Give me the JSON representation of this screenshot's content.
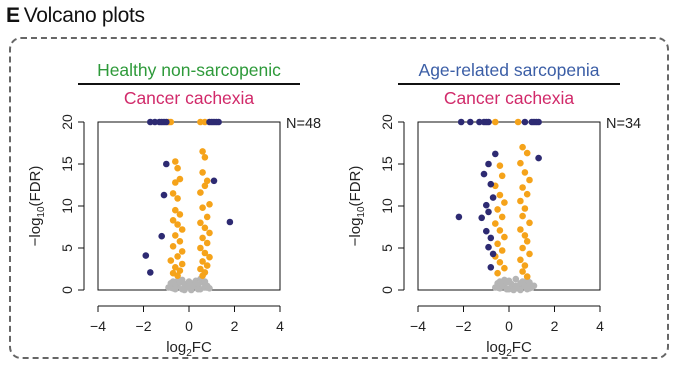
{
  "panel": {
    "letter": "E",
    "title": "Volcano plots"
  },
  "colors": {
    "frame": "#666666",
    "healthy": "#2e9a3a",
    "sarcopenia": "#3b5ea6",
    "cachexia": "#d12a6a",
    "significant": "#f5a31a",
    "not_significant": "#b5b5b5",
    "large_effect": "#2d2a72"
  },
  "chart_data": [
    {
      "type": "scatter",
      "comparison_top": "Healthy non-sarcopenic",
      "comparison_bottom": "Cancer cachexia",
      "top_color": "#2e9a3a",
      "n_label": "N=48",
      "xlabel_main": "log",
      "xlabel_sub": "2",
      "xlabel_tail": "FC",
      "ylabel_main": "−log",
      "ylabel_sub": "10",
      "ylabel_tail": "(FDR)",
      "xlim": [
        -4,
        4
      ],
      "ylim": [
        0,
        20
      ],
      "x_ticks": [
        -4,
        -2,
        0,
        2,
        4
      ],
      "y_ticks": [
        0,
        5,
        10,
        15,
        20
      ],
      "grid": false,
      "series": [
        {
          "category": "not_significant",
          "color": "#b5b5b5",
          "points": [
            [
              -0.9,
              0.3
            ],
            [
              -0.7,
              0.2
            ],
            [
              -0.5,
              0.4
            ],
            [
              -0.3,
              0.1
            ],
            [
              -0.1,
              0.3
            ],
            [
              0.1,
              0.2
            ],
            [
              0.3,
              0.4
            ],
            [
              0.5,
              0.1
            ],
            [
              0.7,
              0.3
            ],
            [
              -0.8,
              0.8
            ],
            [
              -0.6,
              0.6
            ],
            [
              -0.4,
              0.9
            ],
            [
              -0.2,
              0.7
            ],
            [
              0.0,
              0.5
            ],
            [
              0.2,
              0.8
            ],
            [
              0.4,
              0.6
            ],
            [
              0.6,
              0.9
            ],
            [
              0.8,
              0.5
            ],
            [
              -0.5,
              1.1
            ],
            [
              -0.3,
              1.2
            ],
            [
              0.0,
              1.0
            ],
            [
              0.3,
              1.1
            ],
            [
              0.5,
              1.3
            ],
            [
              -0.7,
              1.0
            ],
            [
              0.7,
              1.0
            ],
            [
              -0.2,
              0.0
            ],
            [
              0.1,
              0.0
            ],
            [
              0.4,
              0.1
            ],
            [
              -0.6,
              0.1
            ],
            [
              0.9,
              0.2
            ]
          ]
        },
        {
          "category": "significant",
          "color": "#f5a31a",
          "points": [
            [
              -0.6,
              15.3
            ],
            [
              -0.5,
              14.5
            ],
            [
              -0.4,
              13.2
            ],
            [
              -0.6,
              12.8
            ],
            [
              -0.7,
              11.5
            ],
            [
              -0.5,
              10.9
            ],
            [
              -0.6,
              9.5
            ],
            [
              -0.4,
              9.0
            ],
            [
              -0.7,
              8.3
            ],
            [
              -0.5,
              7.8
            ],
            [
              -0.3,
              7.2
            ],
            [
              -0.6,
              6.5
            ],
            [
              -0.4,
              5.8
            ],
            [
              -0.7,
              5.2
            ],
            [
              -0.3,
              4.6
            ],
            [
              -0.5,
              4.0
            ],
            [
              -0.8,
              3.5
            ],
            [
              -0.3,
              3.1
            ],
            [
              -0.6,
              2.7
            ],
            [
              -0.4,
              2.3
            ],
            [
              -0.7,
              2.0
            ],
            [
              -0.5,
              1.7
            ],
            [
              0.6,
              16.5
            ],
            [
              0.7,
              15.8
            ],
            [
              0.6,
              14.0
            ],
            [
              0.8,
              13.0
            ],
            [
              0.7,
              12.4
            ],
            [
              0.5,
              11.6
            ],
            [
              0.9,
              10.2
            ],
            [
              0.6,
              9.8
            ],
            [
              0.8,
              8.7
            ],
            [
              0.5,
              8.0
            ],
            [
              0.7,
              7.4
            ],
            [
              0.9,
              6.8
            ],
            [
              0.6,
              6.2
            ],
            [
              0.8,
              5.6
            ],
            [
              0.5,
              5.0
            ],
            [
              0.7,
              4.4
            ],
            [
              0.9,
              3.9
            ],
            [
              0.6,
              3.4
            ],
            [
              0.8,
              2.9
            ],
            [
              0.5,
              2.5
            ],
            [
              0.7,
              2.1
            ],
            [
              0.6,
              1.7
            ],
            [
              -0.9,
              20
            ],
            [
              -0.8,
              20
            ],
            [
              0.5,
              20
            ],
            [
              0.7,
              20
            ]
          ]
        },
        {
          "category": "large_effect",
          "color": "#2d2a72",
          "points": [
            [
              -1.7,
              20
            ],
            [
              -1.5,
              20
            ],
            [
              -1.3,
              20
            ],
            [
              -1.2,
              20
            ],
            [
              -1.1,
              20
            ],
            [
              -1.0,
              20
            ],
            [
              0.9,
              20
            ],
            [
              1.0,
              20
            ],
            [
              1.1,
              20
            ],
            [
              1.2,
              20
            ],
            [
              1.3,
              20
            ],
            [
              -1.0,
              15.0
            ],
            [
              -1.1,
              11.3
            ],
            [
              -1.2,
              6.4
            ],
            [
              -1.9,
              4.1
            ],
            [
              -1.7,
              2.1
            ],
            [
              1.1,
              13.0
            ],
            [
              1.8,
              8.1
            ]
          ]
        }
      ]
    },
    {
      "type": "scatter",
      "comparison_top": "Age-related sarcopenia",
      "comparison_bottom": "Cancer cachexia",
      "top_color": "#3b5ea6",
      "n_label": "N=34",
      "xlabel_main": "log",
      "xlabel_sub": "2",
      "xlabel_tail": "FC",
      "ylabel_main": "−log",
      "ylabel_sub": "10",
      "ylabel_tail": "(FDR)",
      "xlim": [
        -4,
        4
      ],
      "ylim": [
        0,
        20
      ],
      "x_ticks": [
        -4,
        -2,
        0,
        2,
        4
      ],
      "y_ticks": [
        0,
        5,
        10,
        15,
        20
      ],
      "grid": false,
      "series": [
        {
          "category": "not_significant",
          "color": "#b5b5b5",
          "points": [
            [
              -0.6,
              0.3
            ],
            [
              -0.4,
              0.2
            ],
            [
              -0.2,
              0.4
            ],
            [
              0.0,
              0.1
            ],
            [
              0.2,
              0.3
            ],
            [
              0.4,
              0.2
            ],
            [
              0.6,
              0.4
            ],
            [
              0.8,
              0.1
            ],
            [
              1.0,
              0.3
            ],
            [
              -0.5,
              0.8
            ],
            [
              -0.3,
              0.6
            ],
            [
              -0.1,
              0.9
            ],
            [
              0.1,
              0.7
            ],
            [
              0.3,
              0.5
            ],
            [
              0.5,
              0.8
            ],
            [
              0.7,
              0.6
            ],
            [
              0.9,
              0.9
            ],
            [
              1.1,
              0.5
            ],
            [
              -0.2,
              1.2
            ],
            [
              0.0,
              1.1
            ],
            [
              0.3,
              1.3
            ],
            [
              0.6,
              1.0
            ],
            [
              0.8,
              1.2
            ],
            [
              -0.4,
              1.0
            ],
            [
              0.2,
              0.0
            ],
            [
              0.5,
              0.0
            ],
            [
              -0.1,
              0.1
            ],
            [
              0.9,
              0.2
            ]
          ]
        },
        {
          "category": "significant",
          "color": "#f5a31a",
          "points": [
            [
              -0.4,
              14.8
            ],
            [
              -0.3,
              13.6
            ],
            [
              -0.6,
              12.4
            ],
            [
              -0.4,
              11.3
            ],
            [
              -0.2,
              10.4
            ],
            [
              -0.5,
              9.6
            ],
            [
              -0.3,
              8.7
            ],
            [
              -0.6,
              7.9
            ],
            [
              -0.4,
              7.1
            ],
            [
              -0.2,
              6.3
            ],
            [
              -0.5,
              5.5
            ],
            [
              -0.3,
              4.7
            ],
            [
              -0.6,
              4.0
            ],
            [
              -0.4,
              3.3
            ],
            [
              -0.2,
              2.6
            ],
            [
              -0.5,
              2.0
            ],
            [
              0.6,
              17.0
            ],
            [
              0.8,
              16.3
            ],
            [
              0.5,
              15.1
            ],
            [
              0.7,
              14.0
            ],
            [
              0.9,
              13.1
            ],
            [
              0.6,
              12.2
            ],
            [
              0.8,
              11.4
            ],
            [
              0.5,
              10.6
            ],
            [
              0.7,
              9.7
            ],
            [
              0.6,
              8.8
            ],
            [
              0.9,
              8.0
            ],
            [
              0.5,
              7.2
            ],
            [
              0.7,
              6.5
            ],
            [
              0.8,
              5.8
            ],
            [
              0.6,
              5.0
            ],
            [
              0.9,
              4.3
            ],
            [
              0.5,
              3.6
            ],
            [
              0.7,
              2.9
            ],
            [
              0.6,
              2.2
            ],
            [
              0.8,
              1.6
            ],
            [
              -0.6,
              20
            ],
            [
              0.4,
              20
            ]
          ]
        },
        {
          "category": "large_effect",
          "color": "#2d2a72",
          "points": [
            [
              -2.1,
              20
            ],
            [
              -1.7,
              20
            ],
            [
              -1.3,
              20
            ],
            [
              -1.1,
              20
            ],
            [
              -1.0,
              20
            ],
            [
              -0.9,
              20
            ],
            [
              0.7,
              20
            ],
            [
              1.0,
              20
            ],
            [
              1.1,
              20
            ],
            [
              1.2,
              20
            ],
            [
              1.3,
              20
            ],
            [
              -0.6,
              16.2
            ],
            [
              -0.9,
              15.0
            ],
            [
              -1.1,
              13.8
            ],
            [
              -0.8,
              12.6
            ],
            [
              -0.7,
              11.0
            ],
            [
              -1.0,
              10.1
            ],
            [
              -0.9,
              9.3
            ],
            [
              -1.2,
              8.6
            ],
            [
              -1.0,
              7.0
            ],
            [
              -0.8,
              6.2
            ],
            [
              -0.9,
              5.1
            ],
            [
              -0.7,
              4.3
            ],
            [
              -0.8,
              2.7
            ],
            [
              -2.2,
              8.7
            ],
            [
              1.3,
              15.7
            ]
          ]
        }
      ]
    }
  ]
}
